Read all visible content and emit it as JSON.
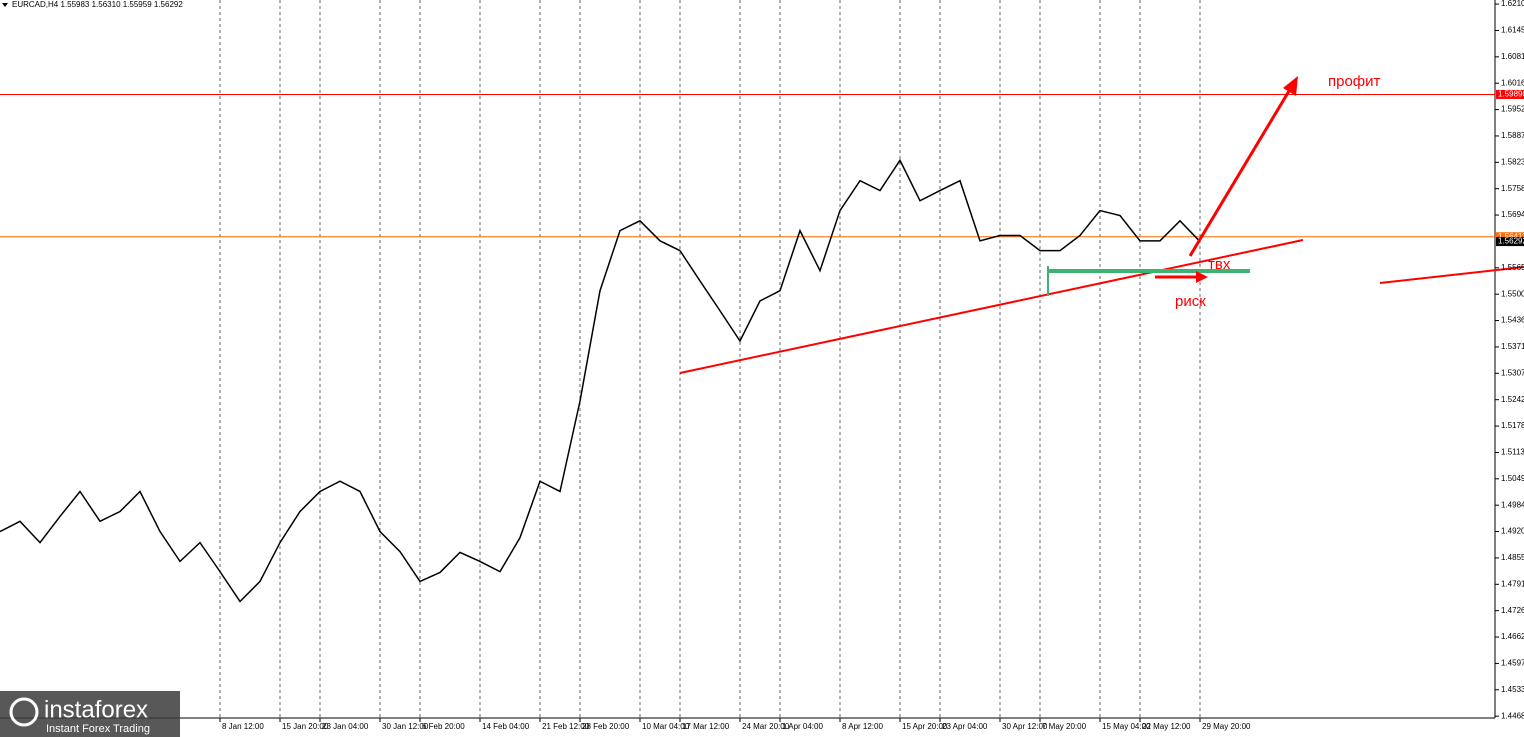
{
  "header": "EURCAD,H4  1.55983 1.56310 1.55959 1.56292",
  "logo": {
    "name": "instaforex",
    "tagline": "Instant Forex Trading"
  },
  "annotations": {
    "profit": "профит",
    "entry": "твх",
    "risk": "риск"
  },
  "chart_data": {
    "type": "line",
    "categories": [
      null,
      null,
      null,
      null,
      null,
      null,
      null,
      null,
      null,
      null,
      null,
      "8 Jan 12:00",
      null,
      null,
      "15 Jan 20:00",
      null,
      "23 Jan 04:00",
      null,
      null,
      "30 Jan 12:00",
      null,
      "6 Feb 20:00",
      null,
      null,
      "14 Feb 04:00",
      null,
      null,
      "21 Feb 12:00",
      null,
      "28 Feb 20:00",
      null,
      null,
      "10 Mar 04:00",
      null,
      "17 Mar 12:00",
      null,
      null,
      "24 Mar 20:00",
      null,
      "1 Apr 04:00",
      null,
      null,
      "8 Apr 12:00",
      null,
      null,
      "15 Apr 20:00",
      null,
      "23 Apr 04:00",
      null,
      null,
      "30 Apr 12:00",
      null,
      "7 May 20:00",
      null,
      null,
      "15 May 04:00",
      null,
      "22 May 12:00",
      null,
      null,
      "29 May 20:00"
    ],
    "series": [
      {
        "name": "EURCAD,H4",
        "color": "#000000",
        "values": [
          1.492,
          1.4945,
          1.4893,
          1.4957,
          1.5018,
          1.4945,
          1.4969,
          1.5018,
          1.492,
          1.4847,
          1.4893,
          1.4822,
          1.4749,
          1.4798,
          1.4893,
          1.4969,
          1.5018,
          1.5043,
          1.5018,
          1.492,
          1.4871,
          1.4798,
          1.482,
          1.4869,
          1.4847,
          1.4822,
          1.4905,
          1.5043,
          1.5018,
          1.5239,
          1.5509,
          1.5656,
          1.568,
          1.5631,
          1.5607,
          1.5533,
          1.546,
          1.5386,
          1.5484,
          1.5509,
          1.5656,
          1.5558,
          1.5705,
          1.5778,
          1.5754,
          1.5828,
          1.5729,
          1.5754,
          1.5778,
          1.5631,
          1.5644,
          1.5644,
          1.5607,
          1.5607,
          1.5644,
          1.5705,
          1.5693,
          1.5631,
          1.5631,
          1.568,
          1.56292
        ]
      }
    ],
    "ylim": [
      1.622,
      1.4464
    ],
    "yticks": [
      {
        "value": 1.621,
        "label": "1.62100"
      },
      {
        "value": 1.61455,
        "label": "1.61455"
      },
      {
        "value": 1.6081,
        "label": "1.60810"
      },
      {
        "value": 1.60165,
        "label": "1.60165"
      },
      {
        "value": 1.5952,
        "label": "1.59520"
      },
      {
        "value": 1.58875,
        "label": "1.58875"
      },
      {
        "value": 1.5823,
        "label": "1.58230"
      },
      {
        "value": 1.57585,
        "label": "1.57585"
      },
      {
        "value": 1.5694,
        "label": "1.56940"
      },
      {
        "value": 1.5565,
        "label": "1.55650"
      },
      {
        "value": 1.55005,
        "label": "1.55005"
      },
      {
        "value": 1.5436,
        "label": "1.54360"
      },
      {
        "value": 1.53715,
        "label": "1.53715"
      },
      {
        "value": 1.5307,
        "label": "1.53070"
      },
      {
        "value": 1.52425,
        "label": "1.52425"
      },
      {
        "value": 1.5178,
        "label": "1.51780"
      },
      {
        "value": 1.51135,
        "label": "1.51135"
      },
      {
        "value": 1.5049,
        "label": "1.50490"
      },
      {
        "value": 1.49845,
        "label": "1.49845"
      },
      {
        "value": 1.492,
        "label": "1.49200"
      },
      {
        "value": 1.48555,
        "label": "1.48555"
      },
      {
        "value": 1.4791,
        "label": "1.47910"
      },
      {
        "value": 1.47265,
        "label": "1.47265"
      },
      {
        "value": 1.4662,
        "label": "1.46620"
      },
      {
        "value": 1.45975,
        "label": "1.45975"
      },
      {
        "value": 1.4533,
        "label": "1.45330"
      },
      {
        "value": 1.44685,
        "label": "1.44685"
      }
    ],
    "levels": [
      {
        "value": 1.5989,
        "label": "1.59890",
        "color": "#ff0000"
      },
      {
        "value": 1.5641,
        "label": "1.56411",
        "color": "#ff6a00"
      },
      {
        "value": 1.56292,
        "label": "1.56292",
        "color": "#000000"
      }
    ]
  }
}
